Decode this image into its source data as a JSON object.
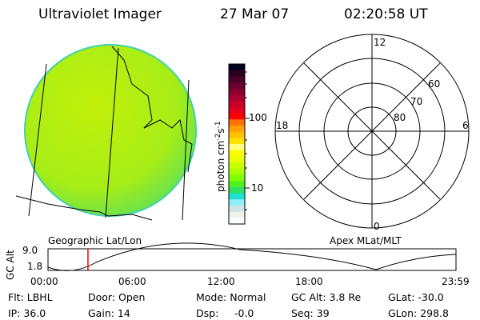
{
  "header": {
    "instrument": "Ultraviolet Imager",
    "date": "27 Mar 07",
    "time": "02:20:58 UT"
  },
  "colorbar": {
    "label": "photon cm^-2 s^-1",
    "label_base": "photon cm",
    "exp1": "-2",
    "mid": "s",
    "exp2": "-1",
    "ticks": [
      "100",
      "10"
    ],
    "colors": [
      "#000022",
      "#2a0020",
      "#4a0028",
      "#6a0030",
      "#8a0030",
      "#a80030",
      "#c80028",
      "#e00020",
      "#ff0000",
      "#ff7000",
      "#ffa000",
      "#ffc000",
      "#ffe000",
      "#ffff80",
      "#f8ff00",
      "#e8ff00",
      "#c8ff00",
      "#a8ff00",
      "#80ff00",
      "#50f020",
      "#30e060",
      "#20e0d0",
      "#90f0f8",
      "#d0e4e4",
      "#e8f4ec",
      "#ffffff"
    ]
  },
  "polar": {
    "labels": {
      "top": "12",
      "bottom": "0",
      "left": "18",
      "right": "6"
    },
    "rings": [
      "80",
      "70",
      "60"
    ]
  },
  "map_labels": {
    "left": "Geographic Lat/Lon",
    "right": "Apex MLat/MLT"
  },
  "alt_plot": {
    "ylabel": "GC Alt",
    "yticks": [
      "9.0",
      "1.8"
    ],
    "xticks": [
      "00:00",
      "06:00",
      "12:00",
      "18:00",
      "23:59"
    ],
    "current_time_hours": 2.35,
    "marker_color": "#ff0000"
  },
  "info": {
    "filter": "Flt: LBHL",
    "ip": "IP: 36.0",
    "door": "Door: Open",
    "gain": "Gain: 14",
    "mode": "Mode: Normal",
    "dsp_label": "Dsp:",
    "dsp_value": "-0.0",
    "gc_alt": "GC Alt: 3.8 Re",
    "seq": "Seq: 39",
    "glat": "GLat: -30.0",
    "glon": "GLon: 298.8"
  }
}
